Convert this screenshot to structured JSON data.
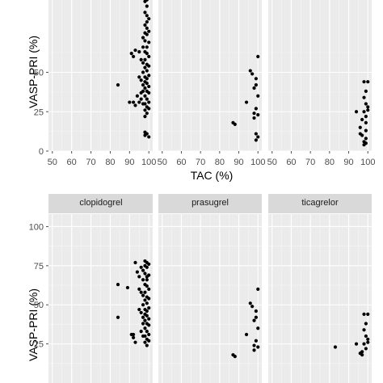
{
  "colors": {
    "panel_bg": "#ebebeb",
    "grid_major": "#ffffff",
    "grid_minor": "#f5f5f5",
    "strip_bg": "#d9d9d9",
    "point": "#000000",
    "tick": "#4d4d4d"
  },
  "chart_data": [
    {
      "type": "scatter",
      "title": "",
      "xlabel": "TAC (%)",
      "ylabel": "VASP-PRI (%)",
      "xlim": [
        48,
        102
      ],
      "ylim": [
        0,
        100
      ],
      "x_ticks": [
        50,
        60,
        70,
        80,
        90,
        100
      ],
      "y_ticks": [
        0,
        25,
        50
      ],
      "facets": [
        {
          "strip": "",
          "points": [
            [
              84,
              42
            ],
            [
              90,
              31
            ],
            [
              92,
              31
            ],
            [
              91,
              62
            ],
            [
              92,
              60
            ],
            [
              93,
              64
            ],
            [
              93,
              29
            ],
            [
              94,
              35
            ],
            [
              95,
              31
            ],
            [
              95,
              47
            ],
            [
              95,
              63
            ],
            [
              96,
              58
            ],
            [
              96,
              45
            ],
            [
              96,
              37
            ],
            [
              96,
              33
            ],
            [
              97,
              72
            ],
            [
              97,
              66
            ],
            [
              97,
              56
            ],
            [
              97,
              50
            ],
            [
              97,
              42
            ],
            [
              97,
              38
            ],
            [
              97,
              30
            ],
            [
              98,
              100
            ],
            [
              98,
              95
            ],
            [
              98,
              88
            ],
            [
              98,
              80
            ],
            [
              98,
              75
            ],
            [
              98,
              70
            ],
            [
              98,
              63
            ],
            [
              98,
              58
            ],
            [
              98,
              53
            ],
            [
              98,
              47
            ],
            [
              98,
              44
            ],
            [
              98,
              40
            ],
            [
              98,
              35
            ],
            [
              98,
              30
            ],
            [
              98,
              26
            ],
            [
              98,
              22
            ],
            [
              98,
              12
            ],
            [
              98,
              10
            ],
            [
              99,
              99
            ],
            [
              99,
              96
            ],
            [
              99,
              92
            ],
            [
              99,
              86
            ],
            [
              99,
              82
            ],
            [
              99,
              78
            ],
            [
              99,
              74
            ],
            [
              99,
              66
            ],
            [
              99,
              62
            ],
            [
              99,
              55
            ],
            [
              99,
              51
            ],
            [
              99,
              46
            ],
            [
              99,
              43
            ],
            [
              99,
              38
            ],
            [
              99,
              33
            ],
            [
              99,
              28
            ],
            [
              99,
              24
            ],
            [
              99,
              11
            ],
            [
              100,
              97
            ],
            [
              100,
              84
            ],
            [
              100,
              76
            ],
            [
              100,
              69
            ],
            [
              100,
              60
            ],
            [
              100,
              54
            ],
            [
              100,
              48
            ],
            [
              100,
              41
            ],
            [
              100,
              37
            ],
            [
              100,
              31
            ],
            [
              100,
              27
            ],
            [
              100,
              9
            ]
          ]
        },
        {
          "strip": "",
          "points": [
            [
              87,
              18
            ],
            [
              88,
              17
            ],
            [
              94,
              31
            ],
            [
              96,
              51
            ],
            [
              97,
              49
            ],
            [
              98,
              40
            ],
            [
              98,
              24
            ],
            [
              98,
              21
            ],
            [
              99,
              46
            ],
            [
              99,
              42
            ],
            [
              99,
              27
            ],
            [
              99,
              11
            ],
            [
              99,
              7
            ],
            [
              100,
              60
            ],
            [
              100,
              35
            ],
            [
              100,
              23
            ],
            [
              100,
              9
            ]
          ]
        },
        {
          "strip": "",
          "points": [
            [
              94,
              25
            ],
            [
              96,
              15
            ],
            [
              96,
              11
            ],
            [
              97,
              20
            ],
            [
              97,
              10
            ],
            [
              98,
              44
            ],
            [
              98,
              34
            ],
            [
              98,
              25
            ],
            [
              98,
              6
            ],
            [
              98,
              4
            ],
            [
              99,
              38
            ],
            [
              99,
              30
            ],
            [
              99,
              22
            ],
            [
              99,
              18
            ],
            [
              99,
              13
            ],
            [
              99,
              8
            ],
            [
              99,
              5
            ],
            [
              100,
              44
            ],
            [
              100,
              28
            ],
            [
              100,
              26
            ]
          ]
        }
      ]
    },
    {
      "type": "scatter",
      "title": "",
      "xlabel": "",
      "ylabel": "VASP-PRI (%)",
      "xlim": [
        48,
        102
      ],
      "ylim": [
        0,
        108
      ],
      "x_ticks": [],
      "y_ticks": [
        25,
        50,
        75,
        100
      ],
      "facets": [
        {
          "strip": "clopidogrel",
          "points": [
            [
              84,
              63
            ],
            [
              84,
              42
            ],
            [
              89,
              61
            ],
            [
              91,
              31
            ],
            [
              92,
              31
            ],
            [
              92,
              29
            ],
            [
              93,
              77
            ],
            [
              93,
              26
            ],
            [
              94,
              71
            ],
            [
              95,
              68
            ],
            [
              95,
              60
            ],
            [
              95,
              47
            ],
            [
              96,
              74
            ],
            [
              96,
              58
            ],
            [
              96,
              45
            ],
            [
              96,
              33
            ],
            [
              97,
              72
            ],
            [
              97,
              66
            ],
            [
              97,
              56
            ],
            [
              97,
              50
            ],
            [
              97,
              42
            ],
            [
              97,
              38
            ],
            [
              97,
              30
            ],
            [
              98,
              78
            ],
            [
              98,
              75
            ],
            [
              98,
              70
            ],
            [
              98,
              63
            ],
            [
              98,
              58
            ],
            [
              98,
              53
            ],
            [
              98,
              47
            ],
            [
              98,
              44
            ],
            [
              98,
              40
            ],
            [
              98,
              35
            ],
            [
              98,
              30
            ],
            [
              98,
              26
            ],
            [
              99,
              77
            ],
            [
              99,
              74
            ],
            [
              99,
              68
            ],
            [
              99,
              66
            ],
            [
              99,
              62
            ],
            [
              99,
              55
            ],
            [
              99,
              51
            ],
            [
              99,
              46
            ],
            [
              99,
              43
            ],
            [
              99,
              38
            ],
            [
              99,
              33
            ],
            [
              99,
              28
            ],
            [
              99,
              24
            ],
            [
              100,
              76
            ],
            [
              100,
              69
            ],
            [
              100,
              60
            ],
            [
              100,
              54
            ],
            [
              100,
              48
            ],
            [
              100,
              41
            ],
            [
              100,
              37
            ],
            [
              100,
              31
            ],
            [
              100,
              27
            ]
          ]
        },
        {
          "strip": "prasugrel",
          "points": [
            [
              87,
              18
            ],
            [
              88,
              17
            ],
            [
              94,
              31
            ],
            [
              96,
              51
            ],
            [
              97,
              49
            ],
            [
              98,
              40
            ],
            [
              98,
              24
            ],
            [
              98,
              21
            ],
            [
              99,
              46
            ],
            [
              99,
              42
            ],
            [
              99,
              27
            ],
            [
              100,
              60
            ],
            [
              100,
              35
            ],
            [
              100,
              23
            ]
          ]
        },
        {
          "strip": "ticagrelor",
          "points": [
            [
              83,
              23
            ],
            [
              94,
              25
            ],
            [
              96,
              19
            ],
            [
              97,
              20
            ],
            [
              97,
              18
            ],
            [
              98,
              44
            ],
            [
              98,
              34
            ],
            [
              98,
              25
            ],
            [
              99,
              38
            ],
            [
              99,
              30
            ],
            [
              99,
              22
            ],
            [
              100,
              44
            ],
            [
              100,
              28
            ],
            [
              100,
              26
            ]
          ]
        }
      ]
    }
  ]
}
